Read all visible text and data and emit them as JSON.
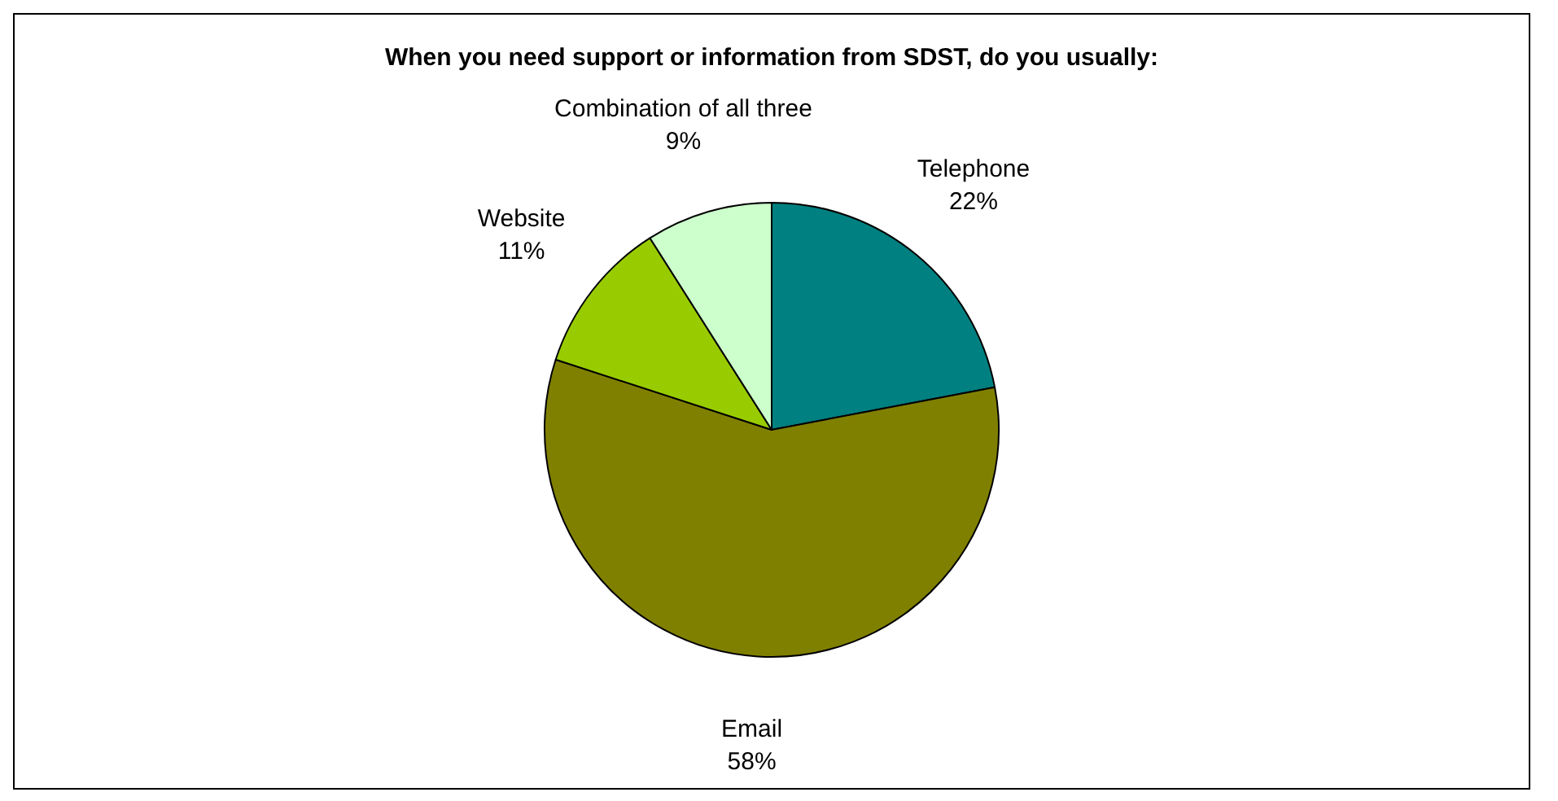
{
  "chart_data": {
    "type": "pie",
    "title": "When you need support or information from SDST, do you usually:",
    "categories": [
      "Telephone",
      "Email",
      "Website",
      "Combination of all three"
    ],
    "values": [
      22,
      58,
      11,
      9
    ],
    "value_labels": [
      "22%",
      "58%",
      "11%",
      "9%"
    ],
    "colors": [
      "#008080",
      "#808000",
      "#99cc00",
      "#ccffcc"
    ],
    "legend": false
  }
}
